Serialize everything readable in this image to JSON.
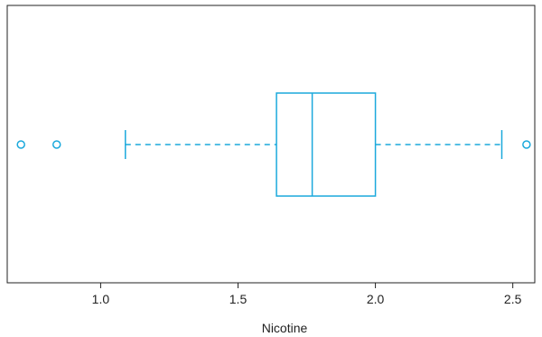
{
  "chart_data": {
    "type": "boxplot",
    "orientation": "horizontal",
    "title": "",
    "xlabel": "Nicotine",
    "ylabel": "",
    "xlim": [
      0.66,
      2.58
    ],
    "xticks": [
      1.0,
      1.5,
      2.0,
      2.5
    ],
    "xtick_labels": [
      "1.0",
      "1.5",
      "2.0",
      "2.5"
    ],
    "box": {
      "whisker_low": 1.09,
      "q1": 1.64,
      "median": 1.77,
      "q3": 2.0,
      "whisker_high": 2.46
    },
    "outliers": [
      0.71,
      0.84,
      2.55
    ],
    "grid": false,
    "color": "#1BA9DC"
  }
}
